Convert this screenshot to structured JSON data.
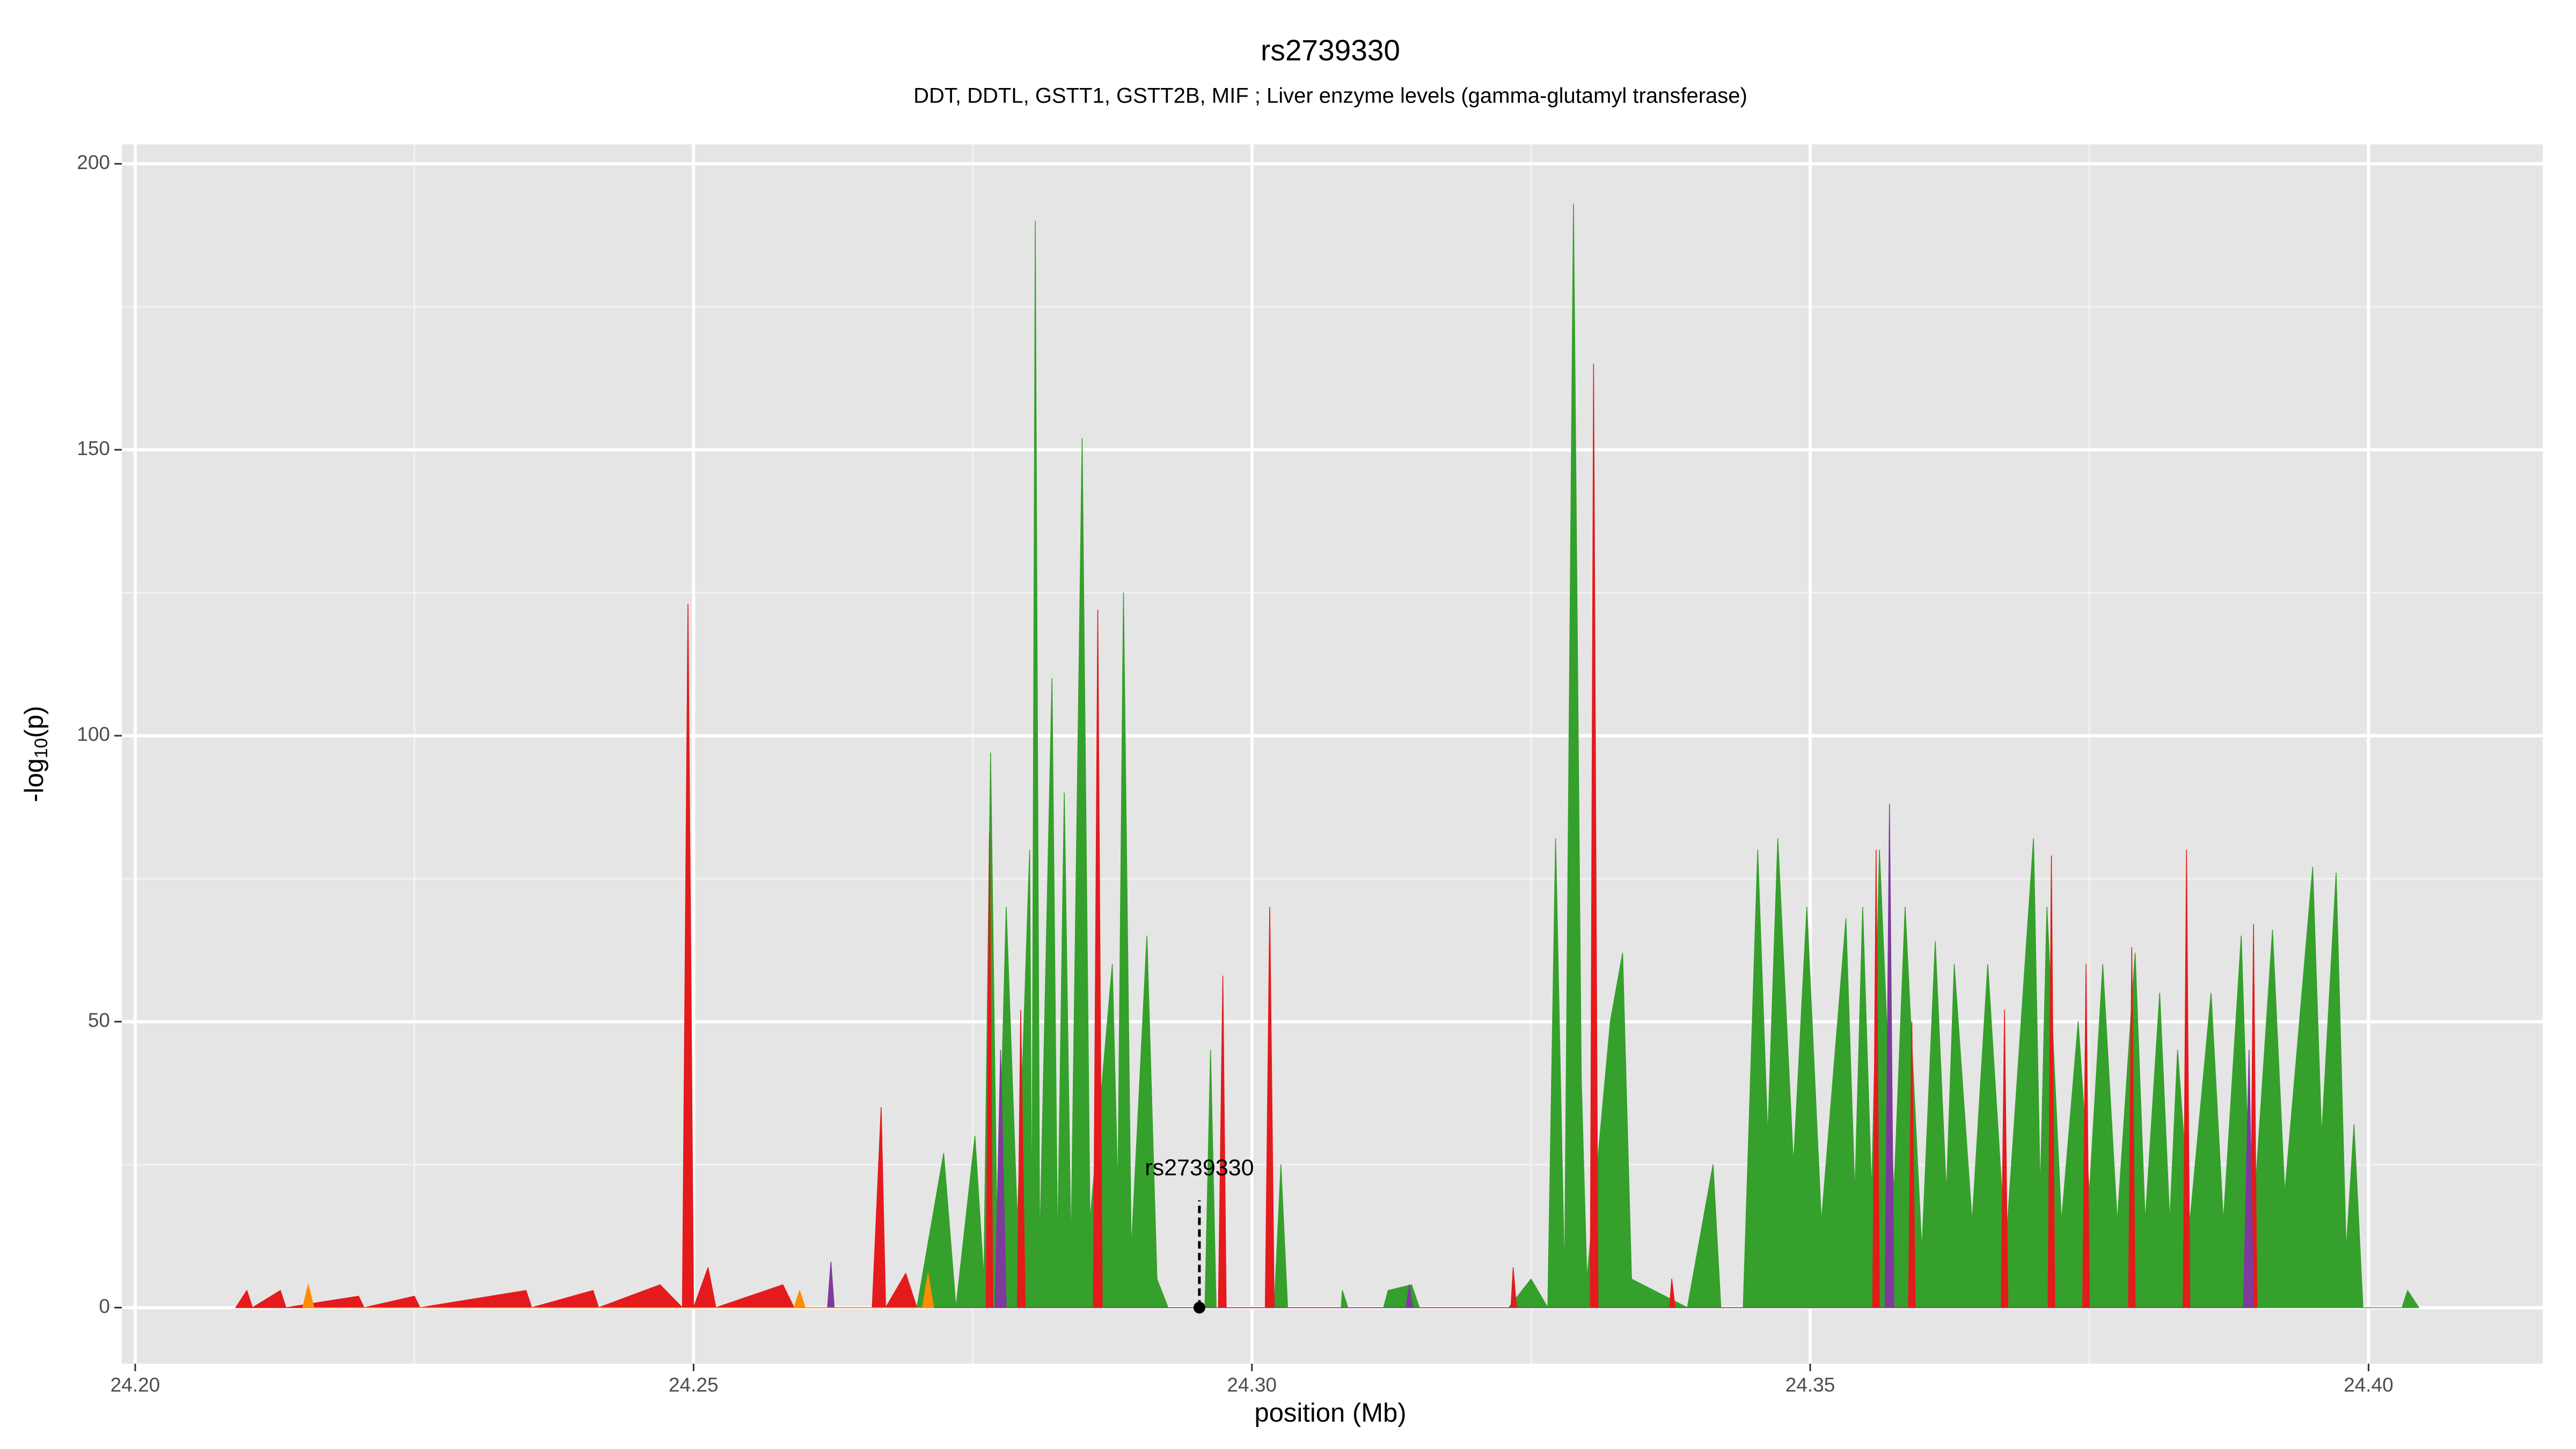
{
  "chart_data": {
    "type": "area",
    "title": "rs2739330",
    "subtitle": "DDT, DDTL, GSTT1, GSTT2B, MIF ; Liver enzyme levels (gamma-glutamyl transferase)",
    "xlabel": "position (Mb)",
    "ylabel": {
      "prefix": "-log",
      "sub": "10",
      "suffix": "(p)"
    },
    "xlim": [
      24.1988,
      24.4156
    ],
    "ylim": [
      -9.8,
      203.4
    ],
    "xticks": [
      {
        "value": 24.2,
        "label": "24.20"
      },
      24.25,
      {
        "value": 24.3,
        "label": "24.30"
      },
      24.35,
      {
        "value": 24.4,
        "label": "24.40"
      }
    ],
    "yticks": [
      0,
      50,
      100,
      150,
      200
    ],
    "grid": true,
    "series": [
      {
        "name": "green",
        "color": "#35a02b",
        "x": [
          24.27,
          24.2724,
          24.2735,
          24.2752,
          24.276,
          24.2766,
          24.2772,
          24.278,
          24.279,
          24.2801,
          24.2803,
          24.2806,
          24.281,
          24.2821,
          24.2826,
          24.2832,
          24.2838,
          24.2848,
          24.2855,
          24.2875,
          24.288,
          24.2885,
          24.2892,
          24.2906,
          24.2915,
          24.2925,
          24.2958,
          24.2963,
          24.2968,
          24.302,
          24.3026,
          24.3032,
          24.308,
          24.3081,
          24.3086,
          24.3118,
          24.3122,
          24.3143,
          24.315,
          24.323,
          24.325,
          24.3265,
          24.3272,
          24.328,
          24.3288,
          24.3295,
          24.33,
          24.3321,
          24.3332,
          24.334,
          24.336,
          24.339,
          24.3413,
          24.342,
          24.344,
          24.3453,
          24.3462,
          24.3471,
          24.3485,
          24.3497,
          24.351,
          24.3532,
          24.354,
          24.3547,
          24.3555,
          24.3562,
          24.3575,
          24.3585,
          24.36,
          24.3612,
          24.3622,
          24.3629,
          24.3645,
          24.3659,
          24.3675,
          24.37,
          24.3706,
          24.3712,
          24.3725,
          24.374,
          24.375,
          24.3762,
          24.3775,
          24.3791,
          24.38,
          24.3813,
          24.3822,
          24.3829,
          24.384,
          24.3859,
          24.387,
          24.3886,
          24.3895,
          24.3914,
          24.3925,
          24.395,
          24.3958,
          24.3971,
          24.398,
          24.3987,
          24.3995,
          24.403,
          24.4035,
          24.4045
        ],
        "values": [
          0,
          27,
          0,
          30,
          5,
          97,
          10,
          70,
          15,
          80,
          10,
          190,
          10,
          110,
          10,
          90,
          10,
          152,
          15,
          60,
          20,
          125,
          10,
          65,
          5,
          0,
          0,
          45,
          0,
          0,
          25,
          0,
          0,
          3,
          0,
          0,
          3,
          4,
          0,
          0,
          5,
          0,
          82,
          5,
          193,
          40,
          5,
          50,
          62,
          5,
          3,
          0,
          25,
          0,
          0,
          80,
          30,
          82,
          25,
          70,
          15,
          68,
          20,
          70,
          20,
          80,
          20,
          70,
          10,
          64,
          20,
          60,
          15,
          60,
          10,
          82,
          20,
          70,
          15,
          50,
          20,
          60,
          15,
          62,
          15,
          55,
          15,
          45,
          15,
          55,
          15,
          65,
          10,
          66,
          20,
          77,
          30,
          76,
          10,
          32,
          0,
          0,
          3,
          0
        ]
      },
      {
        "name": "red",
        "color": "#e41a1c",
        "x": [
          24.209,
          24.21,
          24.2105,
          24.213,
          24.2135,
          24.22,
          24.2205,
          24.225,
          24.2255,
          24.235,
          24.2355,
          24.241,
          24.2415,
          24.247,
          24.249,
          24.2495,
          24.25,
          24.2513,
          24.252,
          24.258,
          24.259,
          24.266,
          24.2668,
          24.2672,
          24.269,
          24.27,
          24.2762,
          24.2765,
          24.2768,
          24.279,
          24.2793,
          24.2797,
          24.2858,
          24.2862,
          24.2866,
          24.297,
          24.2974,
          24.2977,
          24.3012,
          24.3016,
          24.302,
          24.3232,
          24.3234,
          24.3237,
          24.3303,
          24.3306,
          24.331,
          24.3374,
          24.3376,
          24.3379,
          24.3556,
          24.3559,
          24.3562,
          24.3588,
          24.3591,
          24.3594,
          24.3671,
          24.3674,
          24.3677,
          24.3713,
          24.3716,
          24.3719,
          24.3744,
          24.3747,
          24.375,
          24.3785,
          24.3788,
          24.3791,
          24.3834,
          24.3837,
          24.384,
          24.3894,
          24.3897,
          24.39
        ],
        "values": [
          0,
          3,
          0,
          3,
          0,
          2,
          0,
          2,
          0,
          3,
          0,
          3,
          0,
          4,
          0,
          123,
          0,
          7,
          0,
          4,
          0,
          0,
          35,
          0,
          6,
          0,
          0,
          83,
          0,
          0,
          52,
          0,
          0,
          122,
          0,
          0,
          58,
          0,
          0,
          70,
          0,
          0,
          7,
          0,
          0,
          165,
          0,
          0,
          5,
          0,
          0,
          80,
          0,
          0,
          50,
          0,
          0,
          52,
          0,
          0,
          79,
          0,
          0,
          60,
          0,
          0,
          63,
          0,
          0,
          80,
          0,
          0,
          67,
          0
        ]
      },
      {
        "name": "purple",
        "color": "#7e3b9c",
        "x": [
          24.262,
          24.2623,
          24.2626,
          24.277,
          24.2775,
          24.278,
          24.3138,
          24.3141,
          24.3144,
          24.3567,
          24.3571,
          24.3575,
          24.3888,
          24.3893,
          24.3897
        ],
        "values": [
          0,
          8,
          0,
          0,
          45,
          0,
          0,
          4,
          0,
          0,
          88,
          0,
          0,
          45,
          0
        ]
      },
      {
        "name": "orange",
        "color": "#ff8c00",
        "x": [
          24.215,
          24.2155,
          24.216,
          24.259,
          24.2595,
          24.26,
          24.2705,
          24.271,
          24.2715
        ],
        "values": [
          0,
          4,
          0,
          0,
          3,
          0,
          0,
          6,
          0
        ]
      }
    ],
    "annotation": {
      "label": "rs2739330",
      "x": 24.2953,
      "y": 0
    }
  }
}
